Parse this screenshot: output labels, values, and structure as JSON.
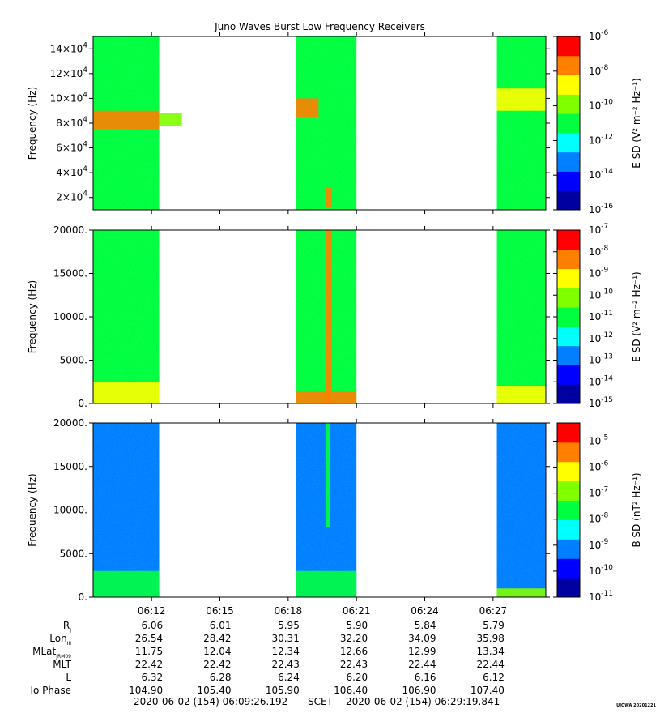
{
  "figure": {
    "title": "Juno Waves Burst Low Frequency Receivers",
    "watermark": "UIOWA 20201221",
    "colormap": [
      "#0000a0",
      "#0000ff",
      "#0080ff",
      "#00ffff",
      "#00ff40",
      "#80ff00",
      "#ffff00",
      "#ff8000",
      "#ff0000"
    ]
  },
  "chart_data": [
    {
      "type": "heatmap",
      "ylabel": "Frequency (Hz)",
      "ylim": [
        10000,
        150000
      ],
      "yticks": [
        {
          "v": 20000,
          "m": "2",
          "e": "4"
        },
        {
          "v": 40000,
          "m": "4",
          "e": "4"
        },
        {
          "v": 60000,
          "m": "6",
          "e": "4"
        },
        {
          "v": 80000,
          "m": "8",
          "e": "4"
        },
        {
          "v": 100000,
          "m": "10",
          "e": "4"
        },
        {
          "v": 120000,
          "m": "12",
          "e": "4"
        },
        {
          "v": 140000,
          "m": "14",
          "e": "4"
        }
      ],
      "colorbar": {
        "label": "E SD (V² m⁻² Hz⁻¹)",
        "ticks": [
          {
            "v": -6,
            "text": "10",
            "exp": "-6"
          },
          {
            "v": -8,
            "text": "10",
            "exp": "-8"
          },
          {
            "v": -10,
            "text": "10",
            "exp": "-10"
          },
          {
            "v": -12,
            "text": "10",
            "exp": "-12"
          },
          {
            "v": -14,
            "text": "10",
            "exp": "-14"
          },
          {
            "v": -16,
            "text": "10",
            "exp": "-16"
          }
        ],
        "range": [
          -16,
          -6
        ]
      },
      "background_level": 0.45,
      "features": [
        {
          "t0": "06:09:26",
          "t1": "06:12:20",
          "f0": 75000,
          "f1": 90000,
          "level": 0.85
        },
        {
          "t0": "06:12:20",
          "t1": "06:13:20",
          "f0": 78000,
          "f1": 88000,
          "level": 0.6
        },
        {
          "t0": "06:18:20",
          "t1": "06:19:20",
          "f0": 85000,
          "f1": 100000,
          "level": 0.88
        },
        {
          "t0": "06:19:40",
          "t1": "06:19:55",
          "f0": 12000,
          "f1": 28000,
          "level": 0.82
        },
        {
          "t0": "06:27:10",
          "t1": "06:29:19",
          "f0": 90000,
          "f1": 108000,
          "level": 0.75
        }
      ]
    },
    {
      "type": "heatmap",
      "ylabel": "Frequency (Hz)",
      "ylim": [
        0,
        20000
      ],
      "yticks": [
        {
          "v": 0,
          "text": "0."
        },
        {
          "v": 5000,
          "text": "5000."
        },
        {
          "v": 10000,
          "text": "10000."
        },
        {
          "v": 15000,
          "text": "15000."
        },
        {
          "v": 20000,
          "text": "20000."
        }
      ],
      "colorbar": {
        "label": "E SD (V² m⁻² Hz⁻¹)",
        "ticks": [
          {
            "v": -7,
            "text": "10",
            "exp": "-7"
          },
          {
            "v": -8,
            "text": "10",
            "exp": "-8"
          },
          {
            "v": -9,
            "text": "10",
            "exp": "-9"
          },
          {
            "v": -10,
            "text": "10",
            "exp": "-10"
          },
          {
            "v": -11,
            "text": "10",
            "exp": "-11"
          },
          {
            "v": -12,
            "text": "10",
            "exp": "-12"
          },
          {
            "v": -13,
            "text": "10",
            "exp": "-13"
          },
          {
            "v": -14,
            "text": "10",
            "exp": "-14"
          },
          {
            "v": -15,
            "text": "10",
            "exp": "-15"
          }
        ],
        "range": [
          -15,
          -7
        ]
      },
      "background_level": 0.45,
      "features": [
        {
          "t0": "06:09:26",
          "t1": "06:12:20",
          "f0": 0,
          "f1": 2500,
          "level": 0.72
        },
        {
          "t0": "06:18:20",
          "t1": "06:21:00",
          "f0": 0,
          "f1": 1500,
          "level": 0.9
        },
        {
          "t0": "06:19:40",
          "t1": "06:19:55",
          "f0": 0,
          "f1": 20000,
          "level": 0.9
        },
        {
          "t0": "06:27:10",
          "t1": "06:29:19",
          "f0": 0,
          "f1": 2000,
          "level": 0.72
        }
      ]
    },
    {
      "type": "heatmap",
      "ylabel": "Frequency (Hz)",
      "ylim": [
        0,
        20000
      ],
      "yticks": [
        {
          "v": 0,
          "text": "0."
        },
        {
          "v": 5000,
          "text": "5000."
        },
        {
          "v": 10000,
          "text": "10000."
        },
        {
          "v": 15000,
          "text": "15000."
        },
        {
          "v": 20000,
          "text": "20000."
        }
      ],
      "colorbar": {
        "label": "B SD (nT² Hz⁻¹)",
        "ticks": [
          {
            "v": -5,
            "text": "10",
            "exp": "-5"
          },
          {
            "v": -6,
            "text": "10",
            "exp": "-6"
          },
          {
            "v": -7,
            "text": "10",
            "exp": "-7"
          },
          {
            "v": -8,
            "text": "10",
            "exp": "-8"
          },
          {
            "v": -9,
            "text": "10",
            "exp": "-9"
          },
          {
            "v": -10,
            "text": "10",
            "exp": "-10"
          },
          {
            "v": -11,
            "text": "10",
            "exp": "-11"
          }
        ],
        "range": [
          -11,
          -4.3
        ]
      },
      "background_level": 0.3,
      "features": [
        {
          "t0": "06:09:26",
          "t1": "06:12:20",
          "f0": 0,
          "f1": 3000,
          "level": 0.5
        },
        {
          "t0": "06:18:20",
          "t1": "06:21:00",
          "f0": 0,
          "f1": 3000,
          "level": 0.5
        },
        {
          "t0": "06:19:40",
          "t1": "06:19:50",
          "f0": 8000,
          "f1": 20000,
          "level": 0.55
        },
        {
          "t0": "06:27:10",
          "t1": "06:29:19",
          "f0": 0,
          "f1": 1000,
          "level": 0.62
        }
      ]
    }
  ],
  "time_axis": {
    "start": "06:09:26",
    "end": "06:29:19",
    "data_intervals": [
      [
        "06:09:26",
        "06:12:20"
      ],
      [
        "06:18:20",
        "06:21:00"
      ],
      [
        "06:27:10",
        "06:29:19"
      ]
    ],
    "ticks": [
      "06:12",
      "06:15",
      "06:18",
      "06:21",
      "06:24",
      "06:27"
    ]
  },
  "ephemeris": {
    "rows": [
      {
        "label": "R",
        "sub": "J",
        "values": [
          "6.06",
          "6.01",
          "5.95",
          "5.90",
          "5.84",
          "5.79"
        ]
      },
      {
        "label": "Lon",
        "sub": "III",
        "values": [
          "26.54",
          "28.42",
          "30.31",
          "32.20",
          "34.09",
          "35.98"
        ]
      },
      {
        "label": "MLat",
        "sub": "JRM09",
        "values": [
          "11.75",
          "12.04",
          "12.34",
          "12.66",
          "12.99",
          "13.34"
        ]
      },
      {
        "label": "MLT",
        "sub": "",
        "values": [
          "22.42",
          "22.42",
          "22.43",
          "22.43",
          "22.44",
          "22.44"
        ]
      },
      {
        "label": "L",
        "sub": "",
        "values": [
          "6.32",
          "6.28",
          "6.24",
          "6.20",
          "6.16",
          "6.12"
        ]
      },
      {
        "label": "Io Phase",
        "sub": "",
        "values": [
          "104.90",
          "105.40",
          "105.90",
          "106.40",
          "106.90",
          "107.40"
        ]
      }
    ]
  },
  "footer": {
    "start": "2020-06-02 (154) 06:09:26.192",
    "scet": "SCET",
    "end": "2020-06-02 (154) 06:29:19.841"
  }
}
